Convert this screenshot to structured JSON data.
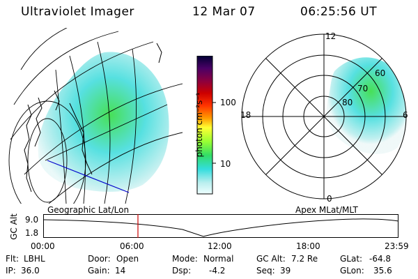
{
  "header": {
    "instrument": "Ultraviolet Imager",
    "date": "12 Mar 07",
    "time": "06:25:56 UT"
  },
  "colorbar": {
    "unit_label": "photon cm⁻²s⁻¹",
    "ticks": [
      {
        "value": 100,
        "label": "100"
      },
      {
        "value": 10,
        "label": "10"
      }
    ],
    "scale": "log",
    "stops": [
      "#000033",
      "#4a0066",
      "#8a0040",
      "#cc0000",
      "#ff3300",
      "#ff9900",
      "#ffff33",
      "#99ff33",
      "#33dd66",
      "#33dddd",
      "#bbeeee",
      "#eeffff"
    ]
  },
  "polar_plot": {
    "mlt_labels": {
      "top": "12",
      "left": "18",
      "right": "6",
      "bottom": "0"
    },
    "lat_labels": [
      "60",
      "70",
      "80"
    ]
  },
  "map_labels": {
    "left": "Geographic Lat/Lon",
    "right": "Apex MLat/MLT"
  },
  "timeline": {
    "ylabel": "GC Alt",
    "yticks": [
      "9.0",
      "1.8"
    ],
    "xticks": [
      "00:00",
      "06:00",
      "12:00",
      "18:00",
      "23:59"
    ],
    "marker_time": "06:25:56"
  },
  "status": {
    "flt_label": "Flt:",
    "flt_value": "LBHL",
    "ip_label": "IP:",
    "ip_value": "36.0",
    "door_label": "Door:",
    "door_value": "Open",
    "gain_label": "Gain:",
    "gain_value": "14",
    "mode_label": "Mode:",
    "mode_value": "Normal",
    "dsp_label": "Dsp:",
    "dsp_value": "-4.2",
    "gcalt_label": "GC Alt:",
    "gcalt_value": "7.2 Re",
    "seq_label": "Seq:",
    "seq_value": "39",
    "glat_label": "GLat:",
    "glat_value": "-64.8",
    "glon_label": "GLon:",
    "glon_value": "35.6"
  },
  "colors": {
    "aurora_high": "#33dd44",
    "aurora_mid": "#44dddd",
    "aurora_low": "#bbeeee",
    "marker": "#cc0000",
    "track": "#0000cc"
  }
}
